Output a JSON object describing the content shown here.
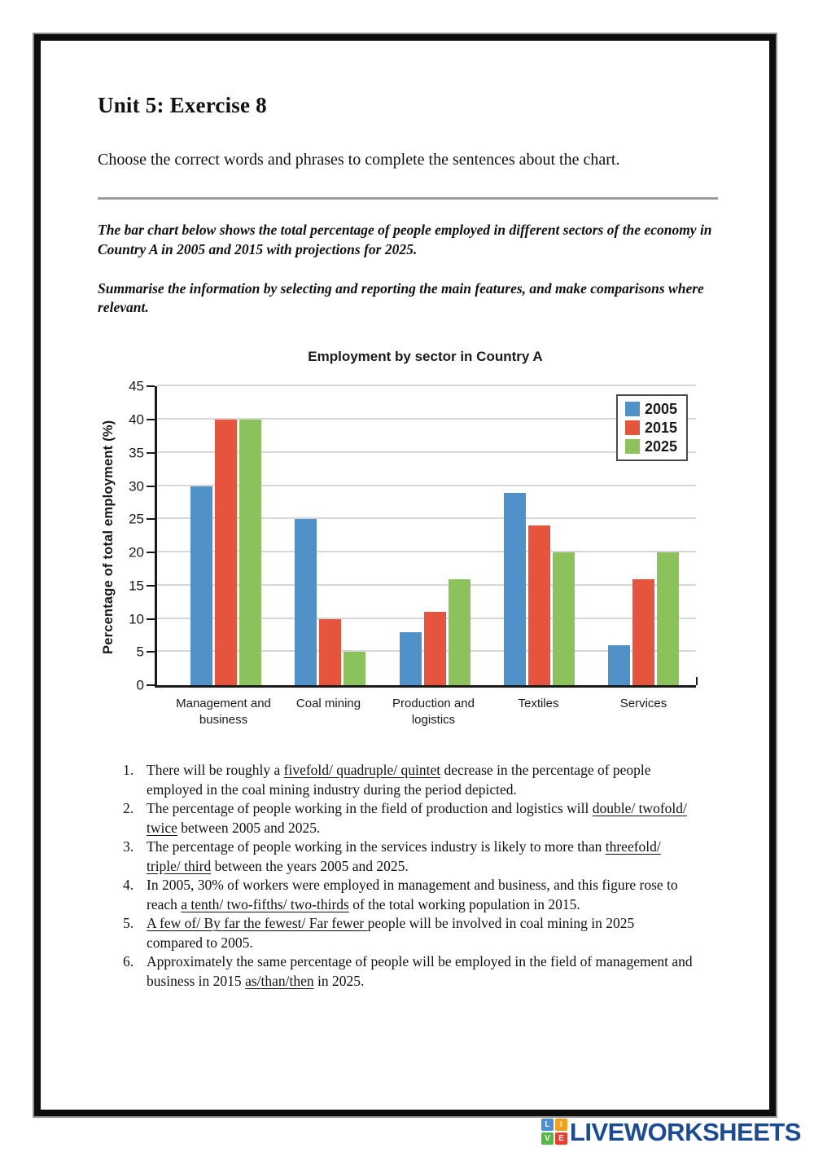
{
  "page": {
    "title": "Unit 5: Exercise 8",
    "instruction": "Choose the correct words and phrases to complete the sentences about the chart.",
    "prompt_1": "The bar chart below shows the total percentage of people employed in different sectors of the economy in Country A in 2005 and 2015 with projections for 2025.",
    "prompt_2": "Summarise the information by selecting and reporting the main features, and make comparisons where relevant."
  },
  "chart_data": {
    "type": "bar",
    "title": "Employment by sector in Country A",
    "ylabel": "Percentage of total employment (%)",
    "xlabel": "",
    "categories": [
      "Management and business",
      "Coal mining",
      "Production and logistics",
      "Textiles",
      "Services"
    ],
    "series": [
      {
        "name": "2005",
        "color": "#5091c9",
        "values": [
          30,
          25,
          8,
          29,
          6
        ]
      },
      {
        "name": "2015",
        "color": "#e6543e",
        "values": [
          40,
          10,
          11,
          24,
          16
        ]
      },
      {
        "name": "2025",
        "color": "#8cc25c",
        "values": [
          40,
          5,
          16,
          20,
          20
        ]
      }
    ],
    "ylim": [
      0,
      45
    ],
    "ytick_step": 5,
    "grid": true,
    "legend_position": "top-right",
    "axis_color": "#1a1a1a",
    "grid_color": "#d7d7d7"
  },
  "exercise": {
    "items": [
      {
        "number": "1.",
        "segments": [
          {
            "text": "There will be roughly a "
          },
          {
            "text": "fivefold/ quadruple/ quintet",
            "u": true
          },
          {
            "text": " decrease in the percentage of people employed in the coal mining industry during the period depicted."
          }
        ]
      },
      {
        "number": "2.",
        "segments": [
          {
            "text": "The percentage of people working in the field of production and logistics will "
          },
          {
            "text": "double/ twofold/ twice",
            "u": true
          },
          {
            "text": " between 2005 and 2025."
          }
        ]
      },
      {
        "number": "3.",
        "segments": [
          {
            "text": "The percentage of people working in the services industry is likely to more than "
          },
          {
            "text": "threefold/ triple/ third",
            "u": true
          },
          {
            "text": " between the years 2005 and 2025."
          }
        ]
      },
      {
        "number": "4.",
        "segments": [
          {
            "text": "In 2005, 30% of workers were employed in management and business, and this figure rose to reach "
          },
          {
            "text": "a tenth/ two-fifths/ two-thirds",
            "u": true
          },
          {
            "text": " of the total working population in 2015."
          }
        ]
      },
      {
        "number": "5.",
        "segments": [
          {
            "text": "A few of/ By far the fewest/ Far fewer ",
            "u": true
          },
          {
            "text": "people will be involved in coal mining in 2025 compared to 2005."
          }
        ]
      },
      {
        "number": "6.",
        "segments": [
          {
            "text": "Approximately the same percentage of people will be employed in the field of management and business in 2015 "
          },
          {
            "text": "as/than/then",
            "u": true
          },
          {
            "text": " in 2025."
          }
        ]
      }
    ]
  },
  "footer": {
    "logo_text": "LIVEWORKSHEETS",
    "logo_text_color": "#1b4b94",
    "logo_tiles": [
      {
        "letter": "L",
        "color": "#4a90d9"
      },
      {
        "letter": "I",
        "color": "#f2a01e"
      },
      {
        "letter": "V",
        "color": "#55b948"
      },
      {
        "letter": "E",
        "color": "#e8402f"
      }
    ]
  }
}
